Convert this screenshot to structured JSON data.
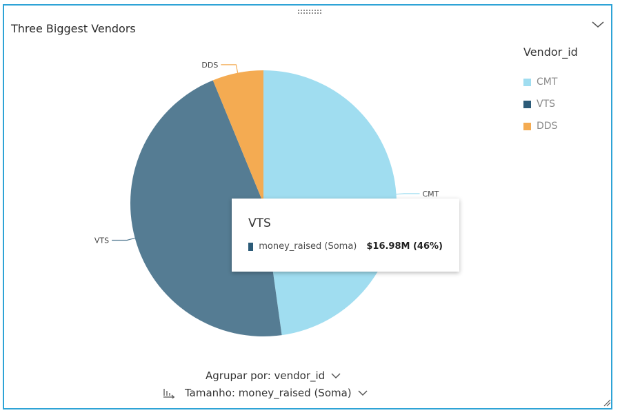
{
  "card": {
    "title": "Three Biggest Vendors"
  },
  "legend": {
    "title": "Vendor_id",
    "items": [
      {
        "label": "CMT",
        "color": "#a0ddf0"
      },
      {
        "label": "VTS",
        "color": "#2c5b78"
      },
      {
        "label": "DDS",
        "color": "#f4ab52"
      }
    ]
  },
  "chart_data": {
    "type": "pie",
    "title": "Three Biggest Vendors",
    "legend_position": "top-right",
    "categories": [
      "CMT",
      "VTS",
      "DDS"
    ],
    "values": [
      47.8,
      46.0,
      6.2
    ],
    "units": "percent of total",
    "colors": [
      "#a0ddf0",
      "#557c93",
      "#f4ab52"
    ],
    "labels": [
      "CMT",
      "VTS",
      "DDS"
    ]
  },
  "tooltip": {
    "title": "VTS",
    "metric": "money_raised (Soma)",
    "value": "$16.98M (46%)",
    "swatch_color": "#2c5b78"
  },
  "controls": {
    "group_by": "Agrupar por: vendor_id",
    "size_by": "Tamanho: money_raised (Soma)"
  }
}
